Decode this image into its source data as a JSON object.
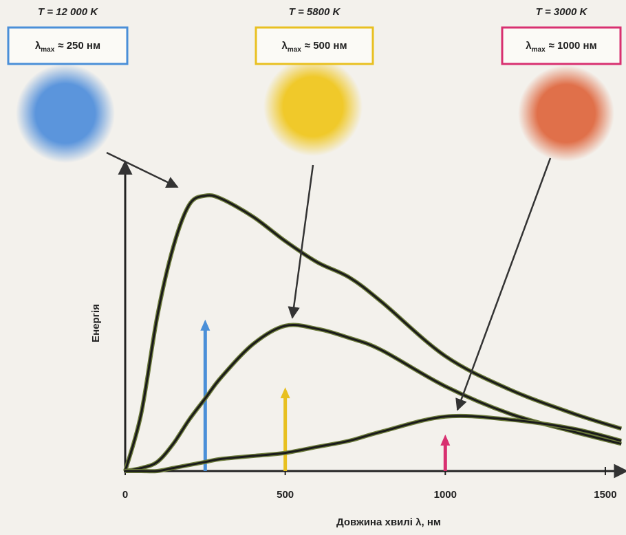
{
  "chart_data": {
    "type": "line",
    "x_label": "Довжина хвилі λ, нм",
    "y_label": "Енергія",
    "x": [
      0,
      50,
      100,
      150,
      200,
      250,
      300,
      400,
      500,
      600,
      700,
      800,
      1000,
      1200,
      1400,
      1550
    ],
    "xlim": [
      0,
      1550
    ],
    "xticks": [
      0,
      500,
      1000,
      1500
    ],
    "ylim": [
      0,
      100
    ],
    "series": [
      {
        "name": "T = 12 000 K",
        "lambda_label": "≈ 250 нм",
        "lambda_max": 250,
        "color": "#4a8fd8",
        "values": [
          0,
          19,
          51,
          74,
          88,
          91,
          90,
          84,
          76,
          69,
          64,
          56,
          38,
          27,
          19,
          14
        ]
      },
      {
        "name": "T = 5800 K",
        "lambda_label": "≈ 500 нм",
        "lambda_max": 500,
        "color": "#e8c020",
        "values": [
          0,
          1,
          3,
          9,
          17,
          24,
          31,
          42,
          48,
          47,
          44,
          40,
          28,
          19,
          13,
          9
        ]
      },
      {
        "name": "T = 3000 K",
        "lambda_label": "≈ 1000 нм",
        "lambda_max": 1000,
        "color": "#d83070",
        "values": [
          0,
          0,
          0,
          1,
          2,
          3,
          4,
          5,
          6,
          8,
          10,
          13,
          18,
          17,
          14,
          10
        ]
      }
    ],
    "lambda_symbol": "λ",
    "lambda_sub": "max"
  }
}
